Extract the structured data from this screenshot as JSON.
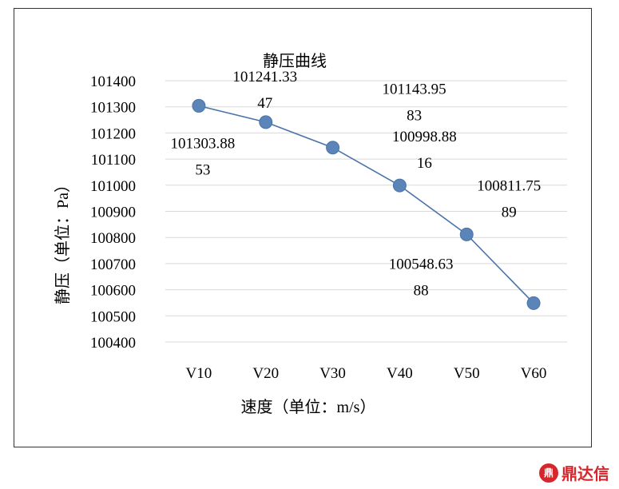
{
  "chart_data": {
    "type": "line",
    "title": "静压曲线",
    "xlabel": "速度（单位：m/s）",
    "ylabel": "静压（单位：Pa）",
    "categories": [
      "V10",
      "V20",
      "V30",
      "V40",
      "V50",
      "V60"
    ],
    "values": [
      101303.8853,
      101241.3347,
      101143.9583,
      100998.8816,
      100811.7589,
      100548.6388
    ],
    "data_labels": [
      [
        "101303.88",
        "53"
      ],
      [
        "101241.33",
        "47"
      ],
      [
        "101143.95",
        "83"
      ],
      [
        "100998.88",
        "16"
      ],
      [
        "100811.75",
        "89"
      ],
      [
        "100548.63",
        "88"
      ]
    ],
    "yticks": [
      100400,
      100500,
      100600,
      100700,
      100800,
      100900,
      101000,
      101100,
      101200,
      101300,
      101400
    ],
    "ylim": [
      100400,
      101400
    ],
    "grid": true,
    "legend": "none",
    "line_color": "#4a74a8",
    "marker_color": "#5b84b8"
  },
  "watermark": {
    "icon": "dingdaxin-logo-icon",
    "text": "鼎达信",
    "color": "#d7262b"
  }
}
